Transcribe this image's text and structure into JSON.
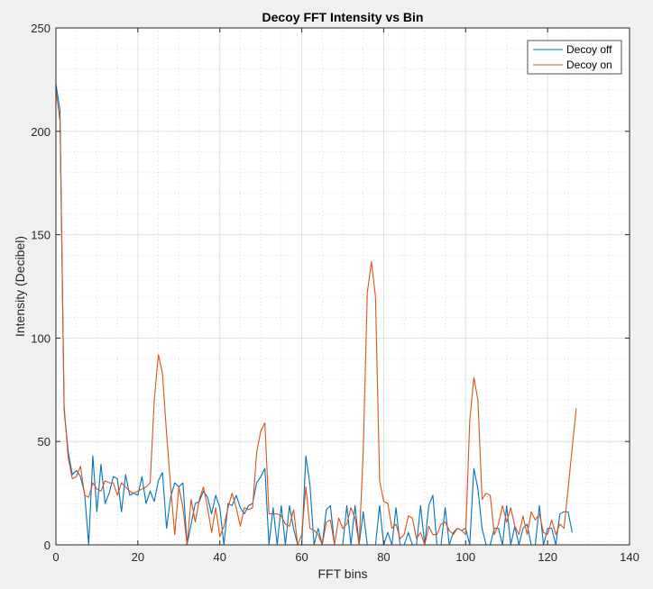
{
  "chart_data": {
    "type": "line",
    "title": "Decoy FFT Intensity vs Bin",
    "xlabel": "FFT bins",
    "ylabel": "Intensity (Decibel)",
    "xlim": [
      0,
      140
    ],
    "ylim": [
      0,
      250
    ],
    "xticks": [
      0,
      20,
      40,
      60,
      80,
      100,
      120,
      140
    ],
    "yticks": [
      0,
      50,
      100,
      150,
      200,
      250
    ],
    "grid": "major and minor (dotted minor)",
    "legend_position": "top-right",
    "series": [
      {
        "name": "Decoy off",
        "color": "#0072BD",
        "x": [
          0,
          1,
          2,
          3,
          4,
          5,
          6,
          7,
          8,
          9,
          10,
          11,
          12,
          13,
          14,
          15,
          16,
          17,
          18,
          19,
          20,
          21,
          22,
          23,
          24,
          25,
          26,
          27,
          28,
          29,
          30,
          31,
          32,
          33,
          34,
          35,
          36,
          37,
          38,
          39,
          40,
          41,
          42,
          43,
          44,
          45,
          46,
          47,
          48,
          49,
          50,
          51,
          52,
          53,
          54,
          55,
          56,
          57,
          58,
          59,
          60,
          61,
          62,
          63,
          64,
          65,
          66,
          67,
          68,
          69,
          70,
          71,
          72,
          73,
          74,
          75,
          76,
          77,
          78,
          79,
          80,
          81,
          82,
          83,
          84,
          85,
          86,
          87,
          88,
          89,
          90,
          91,
          92,
          93,
          94,
          95,
          96,
          97,
          98,
          99,
          100,
          101,
          102,
          103,
          104,
          105,
          106,
          107,
          108,
          109,
          110,
          111,
          112,
          113,
          114,
          115,
          116,
          117,
          118,
          119,
          120,
          121,
          122,
          123,
          124,
          125,
          126
        ],
        "y": [
          223,
          210,
          65,
          45,
          34,
          36,
          33,
          25,
          0,
          43,
          16,
          39,
          20,
          25,
          33,
          32,
          16,
          34,
          24,
          25,
          24,
          33,
          20,
          26,
          21,
          31,
          35,
          8,
          23,
          30,
          28,
          30,
          0,
          10,
          20,
          21,
          26,
          23,
          15,
          24,
          18,
          0,
          20,
          19,
          24,
          18,
          15,
          19,
          20,
          30,
          33,
          37,
          0,
          18,
          0,
          19,
          0,
          19,
          8,
          0,
          0,
          43,
          29,
          0,
          8,
          0,
          17,
          19,
          0,
          0,
          0,
          19,
          0,
          19,
          0,
          16,
          0,
          0,
          0,
          19,
          0,
          6,
          0,
          18,
          0,
          0,
          6,
          0,
          0,
          19,
          0,
          19,
          24,
          0,
          0,
          18,
          0,
          6,
          8,
          7,
          8,
          0,
          37,
          27,
          8,
          0,
          0,
          8,
          8,
          0,
          19,
          0,
          9,
          0,
          8,
          10,
          0,
          0,
          19,
          0,
          8,
          8,
          0,
          15,
          16,
          16,
          6
        ],
        "legend_label": "Decoy off"
      },
      {
        "name": "Decoy on",
        "color": "#D95319",
        "x": [
          0,
          1,
          2,
          3,
          4,
          5,
          6,
          7,
          8,
          9,
          10,
          11,
          12,
          13,
          14,
          15,
          16,
          17,
          18,
          19,
          20,
          21,
          22,
          23,
          24,
          25,
          26,
          27,
          28,
          29,
          30,
          31,
          32,
          33,
          34,
          35,
          36,
          37,
          38,
          39,
          40,
          41,
          42,
          43,
          44,
          45,
          46,
          47,
          48,
          49,
          50,
          51,
          52,
          53,
          54,
          55,
          56,
          57,
          58,
          59,
          60,
          61,
          62,
          63,
          64,
          65,
          66,
          67,
          68,
          69,
          70,
          71,
          72,
          73,
          74,
          75,
          76,
          77,
          78,
          79,
          80,
          81,
          82,
          83,
          84,
          85,
          86,
          87,
          88,
          89,
          90,
          91,
          92,
          93,
          94,
          95,
          96,
          97,
          98,
          99,
          100,
          101,
          102,
          103,
          104,
          105,
          106,
          107,
          108,
          109,
          110,
          111,
          112,
          113,
          114,
          115,
          116,
          117,
          118,
          119,
          120,
          121,
          122,
          123,
          124,
          125,
          126,
          127
        ],
        "y": [
          220,
          205,
          67,
          42,
          32,
          33,
          38,
          24,
          23,
          30,
          27,
          26,
          31,
          30,
          30,
          24,
          30,
          28,
          26,
          25,
          26,
          27,
          28,
          30,
          70,
          92,
          83,
          54,
          28,
          5,
          28,
          18,
          0,
          22,
          11,
          22,
          28,
          18,
          6,
          18,
          4,
          9,
          18,
          25,
          18,
          9,
          18,
          17,
          18,
          45,
          55,
          59,
          15,
          15,
          15,
          14,
          10,
          9,
          17,
          0,
          5,
          28,
          8,
          7,
          5,
          0,
          11,
          12,
          0,
          13,
          8,
          10,
          18,
          13,
          0,
          45,
          122,
          137,
          120,
          31,
          21,
          20,
          8,
          10,
          3,
          5,
          14,
          13,
          3,
          6,
          0,
          9,
          5,
          5,
          10,
          11,
          7,
          5,
          8,
          7,
          5,
          60,
          81,
          70,
          22,
          25,
          24,
          5,
          10,
          19,
          11,
          18,
          9,
          5,
          14,
          5,
          16,
          12,
          15,
          6,
          5,
          12,
          5,
          10,
          8,
          27,
          47,
          66
        ],
        "legend_label": "Decoy on"
      }
    ]
  }
}
